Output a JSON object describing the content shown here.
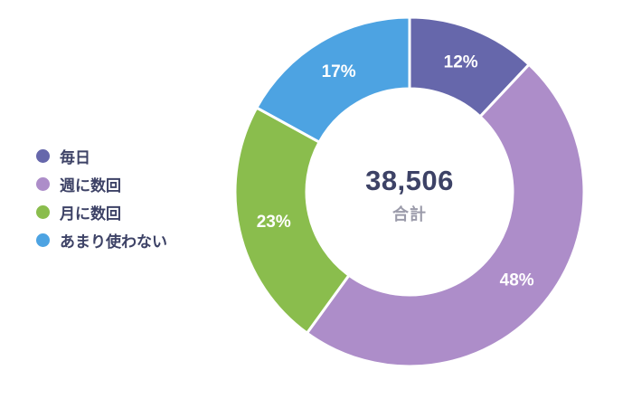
{
  "page": {
    "background": "#ffffff"
  },
  "chart_data": {
    "type": "pie",
    "subtype": "donut",
    "title": "",
    "total_value": "38,506",
    "total_label": "合計",
    "categories": [
      "毎日",
      "週に数回",
      "月に数回",
      "あまり使わない"
    ],
    "values": [
      12,
      48,
      23,
      17
    ],
    "unit": "%",
    "series": [
      {
        "label": "毎日",
        "value": 12,
        "value_label": "12%",
        "color": "#6667AB",
        "text_color": "#ffffff"
      },
      {
        "label": "週に数回",
        "value": 48,
        "value_label": "48%",
        "color": "#AD8DC9",
        "text_color": "#ffffff"
      },
      {
        "label": "月に数回",
        "value": 23,
        "value_label": "23%",
        "color": "#8ABD4D",
        "text_color": "#ffffff"
      },
      {
        "label": "あまり使わない",
        "value": 17,
        "value_label": "17%",
        "color": "#4DA3E2",
        "text_color": "#ffffff"
      }
    ],
    "legend_position": "left",
    "start_angle_deg": 0,
    "direction": "clockwise",
    "outer_radius_px": 193,
    "inner_radius_px": 114,
    "slice_gap_color": "#ffffff"
  },
  "colors": {
    "legend_text": "#3D4266",
    "center_value_text": "#3D4266",
    "center_label_text": "#9B9BAA"
  }
}
